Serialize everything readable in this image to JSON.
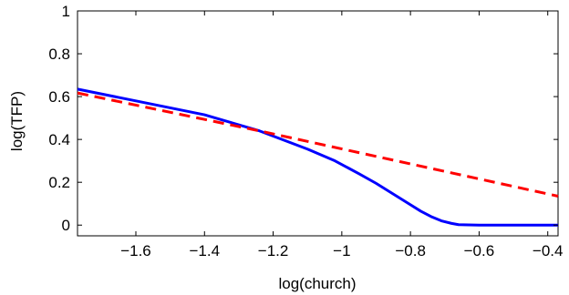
{
  "chart_data": {
    "type": "line",
    "title": "",
    "xlabel": "log(church)",
    "ylabel": "log(TFP)",
    "xlim": [
      -1.77,
      -0.37
    ],
    "ylim": [
      -0.05,
      1.0
    ],
    "xticks": [
      -1.6,
      -1.4,
      -1.2,
      -1.0,
      -0.8,
      -0.6,
      -0.4
    ],
    "xtick_labels": [
      "−1.6",
      "−1.4",
      "−1.2",
      "−1",
      "−0.8",
      "−0.6",
      "−0.4"
    ],
    "yticks": [
      0,
      0.2,
      0.4,
      0.6,
      0.8,
      1
    ],
    "ytick_labels": [
      "0",
      "0.2",
      "0.4",
      "0.6",
      "0.8",
      "1"
    ],
    "grid": false,
    "legend": false,
    "series": [
      {
        "color": "#0000ff",
        "style": "solid",
        "x": [
          -1.77,
          -1.6,
          -1.4,
          -1.24,
          -1.1,
          -1.02,
          -0.95,
          -0.9,
          -0.85,
          -0.8,
          -0.77,
          -0.74,
          -0.71,
          -0.68,
          -0.66,
          -0.6,
          -0.5,
          -0.37
        ],
        "y": [
          0.635,
          0.58,
          0.515,
          0.44,
          0.355,
          0.3,
          0.24,
          0.195,
          0.145,
          0.095,
          0.065,
          0.04,
          0.02,
          0.008,
          0.002,
          0.0,
          0.0,
          0.0
        ]
      },
      {
        "color": "#ff0000",
        "style": "dashed",
        "x": [
          -1.77,
          -1.24,
          -0.37
        ],
        "y": [
          0.617,
          0.44,
          0.135
        ]
      }
    ]
  }
}
